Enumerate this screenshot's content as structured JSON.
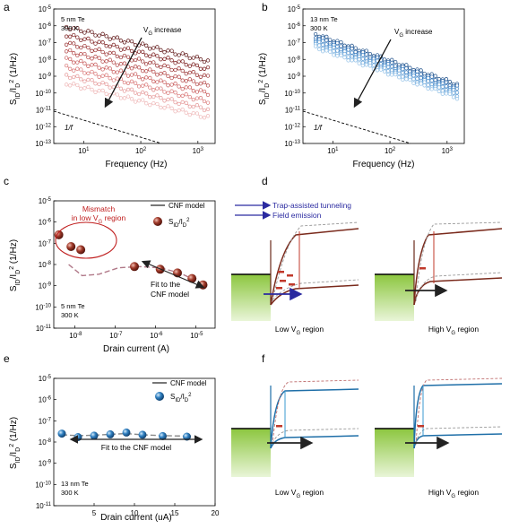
{
  "panels": {
    "a": {
      "letter": "a",
      "sample_lines": [
        "5 nm Te",
        "300 K"
      ],
      "annotation": "VG increase",
      "slope_label": "1/f",
      "xlabel": "Frequency (Hz)",
      "ylabel": "SID/ID2 (1/Hz)",
      "yticks": [
        "10-5",
        "10-6",
        "10-7",
        "10-8",
        "10-9",
        "10-10",
        "10-11",
        "10-12",
        "10-13"
      ],
      "xticks": [
        "10¹",
        "10²",
        "10³"
      ],
      "colors": [
        "#5a0f0f",
        "#7a1a1a",
        "#993030",
        "#b34545",
        "#c85a5a",
        "#d97777",
        "#e59898",
        "#efb8b8"
      ]
    },
    "b": {
      "letter": "b",
      "sample_lines": [
        "13 nm Te",
        "300 K"
      ],
      "annotation": "VG increase",
      "slope_label": "1/f",
      "xlabel": "Frequency (Hz)",
      "ylabel": "SID/ID2 (1/Hz)",
      "yticks": [
        "10-5",
        "10-6",
        "10-7",
        "10-8",
        "10-9",
        "10-10",
        "10-11",
        "10-12",
        "10-13"
      ],
      "xticks": [
        "10¹",
        "10²",
        "10³"
      ],
      "colors": [
        "#1c4f8a",
        "#2a66a8",
        "#3b7fc2",
        "#5595d0",
        "#73abdc",
        "#93c1e7"
      ]
    },
    "c": {
      "letter": "c",
      "mismatch_text": [
        "Mismatch",
        "in low VG region"
      ],
      "legend_model": "CNF model",
      "legend_data": "SID/ID2",
      "fit_text": [
        "Fit to the",
        "CNF model"
      ],
      "sample_lines": [
        "5 nm Te",
        "300 K"
      ],
      "xlabel": "Drain current (A)",
      "ylabel": "SID/ID2 (1/Hz)",
      "yticks": [
        "10-5",
        "10-6",
        "10-7",
        "10-8",
        "10-9",
        "10-10",
        "10-11"
      ],
      "xticks": [
        "10-8",
        "10-7",
        "10-6",
        "10-5"
      ],
      "chart_data": {
        "type": "scatter",
        "x_scale": "log",
        "y_scale": "log",
        "xlim": [
          3e-09,
          3e-05
        ],
        "ylim": [
          1e-11,
          1e-05
        ],
        "series": [
          {
            "name": "SID/ID2",
            "x": [
              4e-09,
              8e-09,
              1.4e-08,
              3e-07,
              1.3e-06,
              3.5e-06,
              8e-06,
              1.5e-05
            ],
            "y": [
              2.5e-07,
              7e-08,
              5e-08,
              8e-09,
              6e-09,
              4e-09,
              2.2e-09,
              1.1e-09
            ]
          },
          {
            "name": "CNF model",
            "x": [
              7e-09,
              1.5e-08,
              4e-08,
              1.2e-07,
              4e-07,
              1.3e-06,
              4e-06,
              1.5e-05
            ],
            "y": [
              1e-08,
              3e-09,
              3.5e-09,
              7e-09,
              8e-09,
              7e-09,
              4e-09,
              1.2e-09
            ]
          }
        ]
      }
    },
    "d": {
      "letter": "d",
      "legend_tat": "Trap-assisted tunneling",
      "legend_fe": "Field emission",
      "low_label": "Low VG region",
      "high_label": "High VG region",
      "color_band": "#7a2a1c",
      "color_trap": "#c0392b"
    },
    "e": {
      "letter": "e",
      "legend_model": "CNF model",
      "legend_data": "SID/ID2",
      "fit_text": "Fit to the CNF model",
      "sample_lines": [
        "13 nm Te",
        "300 K"
      ],
      "xlabel": "Drain current (uA)",
      "ylabel": "SID/ID2 (1/Hz)",
      "yticks": [
        "10-5",
        "10-6",
        "10-7",
        "10-8",
        "10-9",
        "10-10",
        "10-11"
      ],
      "xticks": [
        "5",
        "10",
        "15",
        "20"
      ],
      "chart_data": {
        "type": "scatter",
        "x_scale": "linear",
        "y_scale": "log",
        "xlim": [
          0,
          20
        ],
        "ylim": [
          1e-11,
          1e-05
        ],
        "series": [
          {
            "name": "SID/ID2",
            "x": [
              1,
              3,
              5,
              7,
              9,
              11,
              13.5,
              16.5
            ],
            "y": [
              2.5e-08,
              1.7e-08,
              2e-08,
              2.3e-08,
              2.8e-08,
              2.2e-08,
              1.9e-08,
              1.8e-08
            ]
          },
          {
            "name": "CNF model",
            "x": [
              1,
              3,
              5,
              7,
              9,
              11,
              13.5,
              16.5
            ],
            "y": [
              2.2e-08,
              2e-08,
              2.1e-08,
              2.3e-08,
              2.5e-08,
              2.2e-08,
              2e-08,
              1.9e-08
            ]
          }
        ]
      }
    },
    "f": {
      "letter": "f",
      "low_label": "Low VG region",
      "high_label": "High VG region",
      "color_band": "#1f6fa8",
      "color_trap": "#c0392b"
    }
  }
}
